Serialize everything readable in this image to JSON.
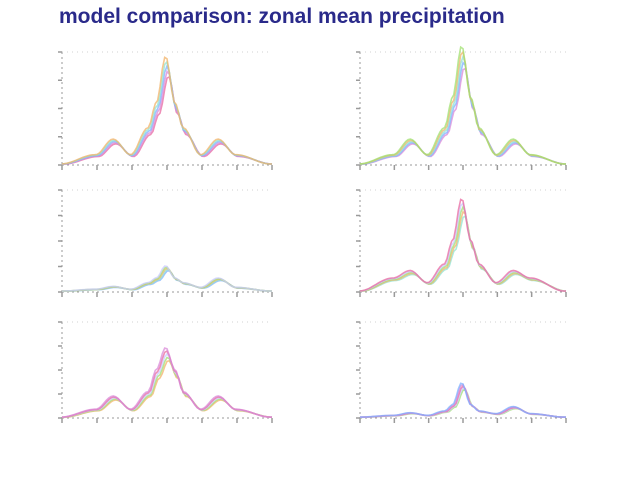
{
  "title": "model comparison: zonal mean precipitation",
  "colors": {
    "title": "#2a2a8a",
    "axis": "#9a9a9a",
    "series": [
      "#e86aa0",
      "#d98ad8",
      "#7fb0ff",
      "#8fe3d0",
      "#f2b36a",
      "#a0e070",
      "#c9c9ff"
    ]
  },
  "chart_data": [
    {
      "type": "line",
      "panel": 1,
      "x": [
        -90,
        -60,
        -45,
        -30,
        -15,
        -8,
        0,
        8,
        15,
        30,
        45,
        60,
        90
      ],
      "series": [
        {
          "values": [
            0.1,
            1.0,
            2.5,
            1.0,
            3.6,
            6.0,
            10.5,
            6.0,
            3.6,
            1.0,
            2.5,
            1.0,
            0.1
          ]
        }
      ]
    },
    {
      "type": "line",
      "panel": 2,
      "x": [
        -90,
        -60,
        -45,
        -30,
        -15,
        -8,
        0,
        8,
        15,
        30,
        45,
        60,
        90
      ],
      "series": [
        {
          "values": [
            0.1,
            1.0,
            2.5,
            1.0,
            3.6,
            6.5,
            11.5,
            6.5,
            3.6,
            1.0,
            2.5,
            1.0,
            0.1
          ]
        }
      ]
    },
    {
      "type": "line",
      "panel": 3,
      "x": [
        -90,
        -60,
        -45,
        -30,
        -15,
        -8,
        0,
        8,
        15,
        30,
        45,
        60,
        90
      ],
      "series": [
        {
          "values": [
            0.1,
            0.3,
            0.6,
            0.3,
            1.0,
            1.5,
            2.8,
            1.5,
            1.0,
            0.5,
            1.5,
            0.5,
            0.1
          ]
        }
      ]
    },
    {
      "type": "line",
      "panel": 4,
      "x": [
        -90,
        -60,
        -45,
        -30,
        -15,
        -8,
        0,
        8,
        15,
        30,
        45,
        60,
        90
      ],
      "series": [
        {
          "values": [
            0.1,
            1.5,
            2.3,
            1.0,
            3.0,
            5.5,
            10.0,
            5.5,
            3.0,
            1.0,
            2.3,
            1.5,
            0.1
          ]
        }
      ]
    },
    {
      "type": "line",
      "panel": 5,
      "x": [
        -90,
        -60,
        -45,
        -30,
        -15,
        -8,
        0,
        8,
        15,
        30,
        45,
        60,
        90
      ],
      "series": [
        {
          "values": [
            0.1,
            1.0,
            2.5,
            1.0,
            3.0,
            5.5,
            8.0,
            5.5,
            3.0,
            1.0,
            2.5,
            1.0,
            0.1
          ]
        }
      ]
    },
    {
      "type": "line",
      "panel": 6,
      "x": [
        -90,
        -60,
        -45,
        -30,
        -15,
        -8,
        0,
        8,
        15,
        30,
        45,
        60,
        90
      ],
      "series": [
        {
          "values": [
            0.1,
            0.3,
            0.6,
            0.3,
            0.8,
            1.5,
            4.0,
            1.5,
            0.8,
            0.5,
            1.3,
            0.5,
            0.1
          ]
        }
      ]
    }
  ]
}
